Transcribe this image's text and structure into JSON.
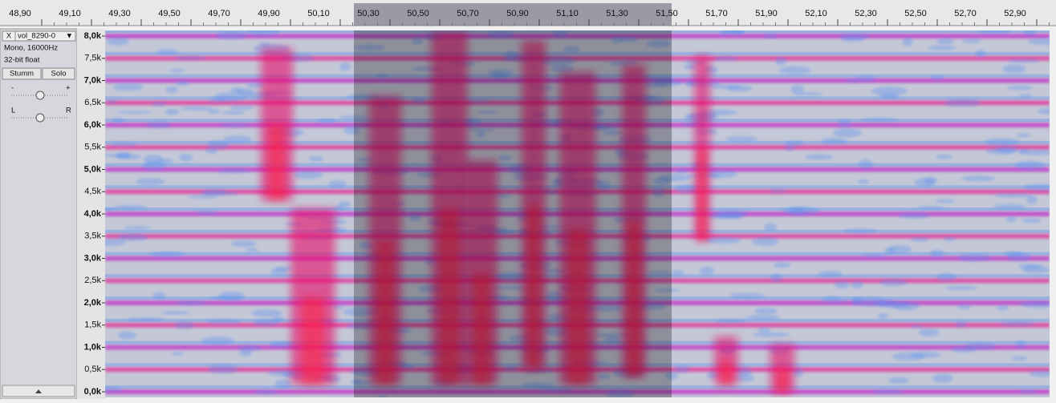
{
  "timeline": {
    "labels": [
      "48,90",
      "49,10",
      "49,30",
      "49,50",
      "49,70",
      "49,90",
      "50,10",
      "50,30",
      "50,50",
      "50,70",
      "50,90",
      "51,10",
      "51,30",
      "51,50",
      "51,70",
      "51,90",
      "52,10",
      "52,30",
      "52,50",
      "52,70",
      "52,90"
    ]
  },
  "track": {
    "close": "X",
    "name": "vol_8290-0",
    "menu": "▼",
    "format": "Mono, 16000Hz",
    "sample": "32-bit float",
    "mute": "Stumm",
    "solo": "Solo",
    "gain_min": "-",
    "gain_max": "+",
    "pan_left": "L",
    "pan_right": "R"
  },
  "frequency_axis": {
    "labels": [
      "8,0k",
      "7,5k",
      "7,0k",
      "6,5k",
      "6,0k",
      "5,5k",
      "5,0k",
      "4,5k",
      "4,0k",
      "3,5k",
      "3,0k",
      "2,5k",
      "2,0k",
      "1,5k",
      "1,0k",
      "0,5k",
      "0,0k"
    ]
  }
}
